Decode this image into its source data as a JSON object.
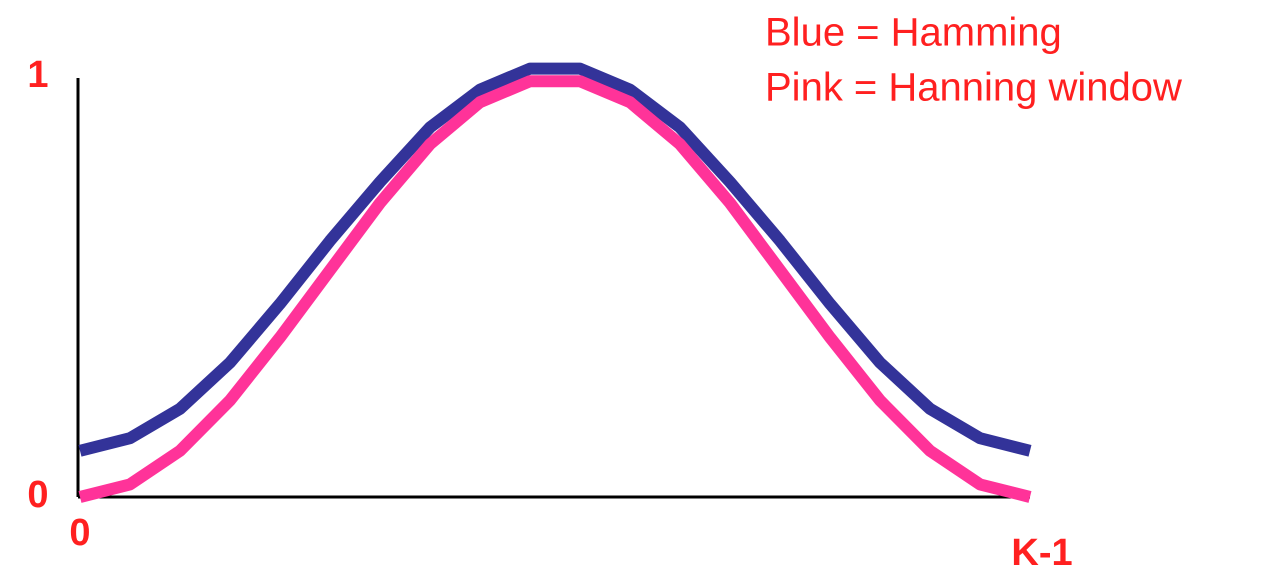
{
  "chart_data": {
    "type": "line",
    "annotations": [
      "Blue = Hamming",
      "Pink = Hanning window"
    ],
    "x": [
      0,
      1,
      2,
      3,
      4,
      5,
      6,
      7,
      8,
      9,
      10,
      11,
      12,
      13,
      14,
      15,
      16,
      17,
      18,
      19
    ],
    "series": [
      {
        "color": "#333399",
        "values": [
          0.11,
          0.14,
          0.21,
          0.32,
          0.46,
          0.61,
          0.75,
          0.88,
          0.97,
          1.02,
          1.02,
          0.97,
          0.88,
          0.75,
          0.61,
          0.46,
          0.32,
          0.21,
          0.14,
          0.11
        ]
      },
      {
        "color": "#ff3399",
        "values": [
          0,
          0.03,
          0.11,
          0.23,
          0.38,
          0.54,
          0.7,
          0.84,
          0.94,
          0.99,
          0.99,
          0.94,
          0.84,
          0.7,
          0.54,
          0.38,
          0.23,
          0.11,
          0.03,
          0
        ]
      }
    ],
    "xlim": [
      0,
      19
    ],
    "xticks": [
      0,
      {
        "value": 19,
        "label": "K-1"
      }
    ],
    "ylim": [
      0,
      1
    ],
    "yticks": [
      0,
      1
    ],
    "annotation_color": "#ff2020",
    "tick_color": "#ff2020"
  }
}
